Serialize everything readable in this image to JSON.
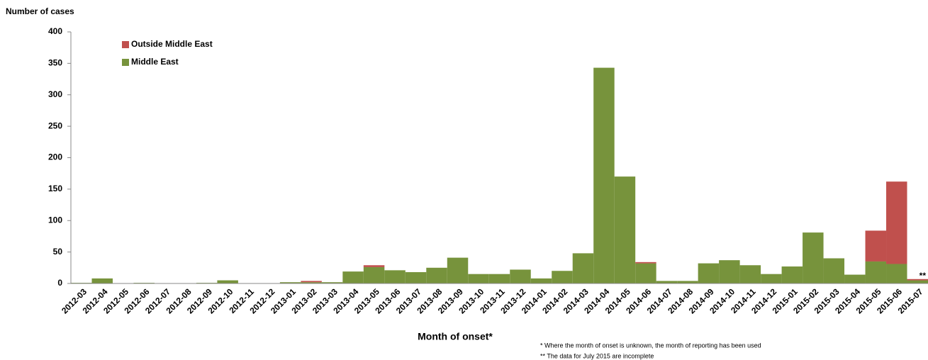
{
  "chart_data": {
    "type": "bar",
    "stacked": true,
    "y_label": "Number of cases",
    "x_label": "Month of onset*",
    "annotation": "**",
    "footnotes": [
      "* Where the month of onset is unknown, the month of reporting has been used",
      "** The data for July 2015 are incomplete"
    ],
    "categories": [
      "2012-03",
      "2012-04",
      "2012-05",
      "2012-06",
      "2012-07",
      "2012-08",
      "2012-09",
      "2012-10",
      "2012-11",
      "2012-12",
      "2013-01",
      "2013-02",
      "2013-03",
      "2013-04",
      "2013-05",
      "2013-06",
      "2013-07",
      "2013-08",
      "2013-09",
      "2013-10",
      "2013-11",
      "2013-12",
      "2014-01",
      "2014-02",
      "2014-03",
      "2014-04",
      "2014-05",
      "2014-06",
      "2014-07",
      "2014-08",
      "2014-09",
      "2014-10",
      "2014-11",
      "2014-12",
      "2015-01",
      "2015-02",
      "2015-03",
      "2015-04",
      "2015-05",
      "2015-06",
      "2015-07"
    ],
    "series": [
      {
        "name": "Middle East",
        "color": "#77933c",
        "values": [
          1,
          8,
          0,
          1,
          0,
          0,
          1,
          5,
          0,
          0,
          2,
          2,
          2,
          19,
          26,
          21,
          18,
          25,
          41,
          15,
          15,
          22,
          8,
          20,
          48,
          343,
          170,
          32,
          4,
          4,
          32,
          37,
          29,
          15,
          27,
          81,
          40,
          14,
          35,
          31,
          5
        ]
      },
      {
        "name": "Outside Middle East",
        "color": "#c0504d",
        "values": [
          0,
          0,
          0,
          0,
          0,
          0,
          0,
          0,
          0,
          0,
          0,
          2,
          0,
          0,
          3,
          0,
          0,
          0,
          0,
          0,
          0,
          0,
          0,
          0,
          0,
          0,
          0,
          2,
          0,
          0,
          0,
          0,
          0,
          0,
          0,
          0,
          0,
          0,
          49,
          131,
          2
        ]
      }
    ],
    "ylim": [
      0,
      400
    ],
    "yticks": [
      0,
      50,
      100,
      150,
      200,
      250,
      300,
      350,
      400
    ],
    "grid": false
  }
}
